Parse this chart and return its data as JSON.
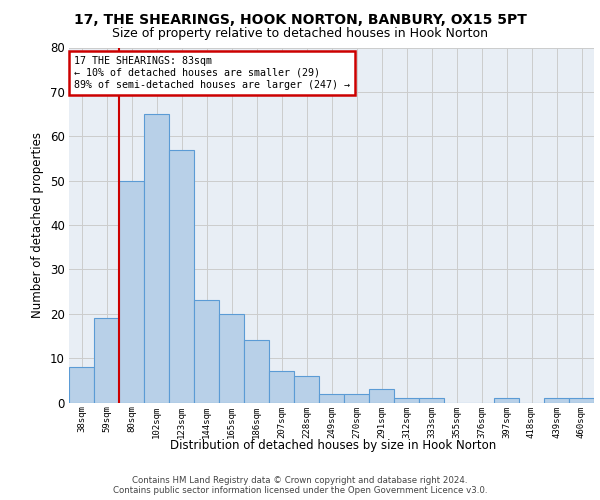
{
  "title_line1": "17, THE SHEARINGS, HOOK NORTON, BANBURY, OX15 5PT",
  "title_line2": "Size of property relative to detached houses in Hook Norton",
  "xlabel": "Distribution of detached houses by size in Hook Norton",
  "ylabel": "Number of detached properties",
  "categories": [
    "38sqm",
    "59sqm",
    "80sqm",
    "102sqm",
    "123sqm",
    "144sqm",
    "165sqm",
    "186sqm",
    "207sqm",
    "228sqm",
    "249sqm",
    "270sqm",
    "291sqm",
    "312sqm",
    "333sqm",
    "355sqm",
    "376sqm",
    "397sqm",
    "418sqm",
    "439sqm",
    "460sqm"
  ],
  "values": [
    8,
    19,
    50,
    65,
    57,
    23,
    20,
    14,
    7,
    6,
    2,
    2,
    3,
    1,
    1,
    0,
    0,
    1,
    0,
    1,
    1
  ],
  "bar_color": "#b8d0e8",
  "bar_edge_color": "#5b9bd5",
  "vline_x_index": 2,
  "vline_color": "#cc0000",
  "annotation_text_line1": "17 THE SHEARINGS: 83sqm",
  "annotation_text_line2": "← 10% of detached houses are smaller (29)",
  "annotation_text_line3": "89% of semi-detached houses are larger (247) →",
  "annotation_box_color": "#cc0000",
  "annotation_fill_color": "#ffffff",
  "annotation_text_color": "#000000",
  "ylim_max": 80,
  "yticks": [
    0,
    10,
    20,
    30,
    40,
    50,
    60,
    70,
    80
  ],
  "grid_color": "#cccccc",
  "background_color": "#e8eef5",
  "footer_line1": "Contains HM Land Registry data © Crown copyright and database right 2024.",
  "footer_line2": "Contains public sector information licensed under the Open Government Licence v3.0."
}
